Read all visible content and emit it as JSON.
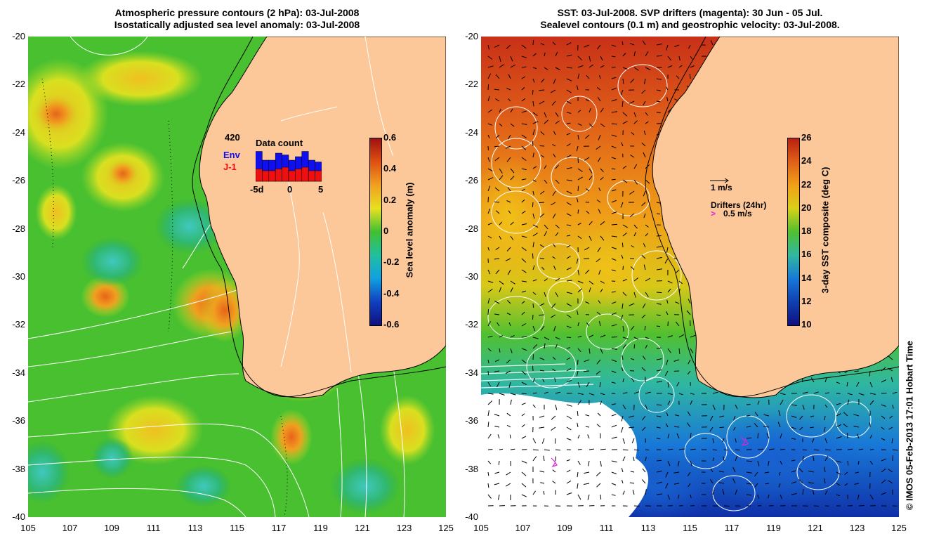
{
  "left_panel": {
    "title_line1": "Atmospheric pressure contours (2 hPa): 03-Jul-2008",
    "title_line2": "Isostatically adjusted sea level anomaly: 03-Jul-2008",
    "y_ticks": [
      "-20",
      "-22",
      "-24",
      "-26",
      "-28",
      "-30",
      "-32",
      "-34",
      "-36",
      "-38",
      "-40"
    ],
    "x_ticks": [
      "105",
      "107",
      "109",
      "111",
      "113",
      "115",
      "117",
      "119",
      "121",
      "123",
      "125"
    ],
    "colorbar": {
      "label": "Sea level anomaly (m)",
      "ticks": [
        "0.6",
        "0.4",
        "0.2",
        "0",
        "-0.2",
        "-0.4",
        "-0.6"
      ],
      "range": [
        -0.6,
        0.6
      ]
    },
    "inset": {
      "total": "420",
      "env_label": "Env",
      "j1_label": "J-1",
      "title": "Data count",
      "x_labels": [
        "-5d",
        "0",
        "5"
      ],
      "env_color": "#1010ee",
      "j1_color": "#ee1010"
    }
  },
  "right_panel": {
    "title_line1": "SST: 03-Jul-2008. SVP drifters (magenta): 30 Jun - 05 Jul.",
    "title_line2": "Sealevel contours (0.1 m) and geostrophic velocity: 03-Jul-2008.",
    "y_ticks": [
      "-20",
      "-22",
      "-24",
      "-26",
      "-28",
      "-30",
      "-32",
      "-34",
      "-36",
      "-38",
      "-40"
    ],
    "x_ticks": [
      "105",
      "107",
      "109",
      "111",
      "113",
      "115",
      "117",
      "119",
      "121",
      "123",
      "125"
    ],
    "colorbar": {
      "label": "3-day SST composite (deg C)",
      "ticks": [
        "26",
        "24",
        "22",
        "20",
        "18",
        "16",
        "14",
        "12",
        "10"
      ],
      "range": [
        10,
        26
      ]
    },
    "legend": {
      "velocity_label": "1 m/s",
      "drifters_label": "Drifters (24hr)",
      "drifter_speed_label": "0.5 m/s",
      "drifter_color": "#dd22dd"
    }
  },
  "credit": "© IMOS 05-Feb-2013 17:01 Hobart Time",
  "colors": {
    "land": "#fcc89a",
    "coast": "#000000",
    "contour": "#ffffff"
  }
}
